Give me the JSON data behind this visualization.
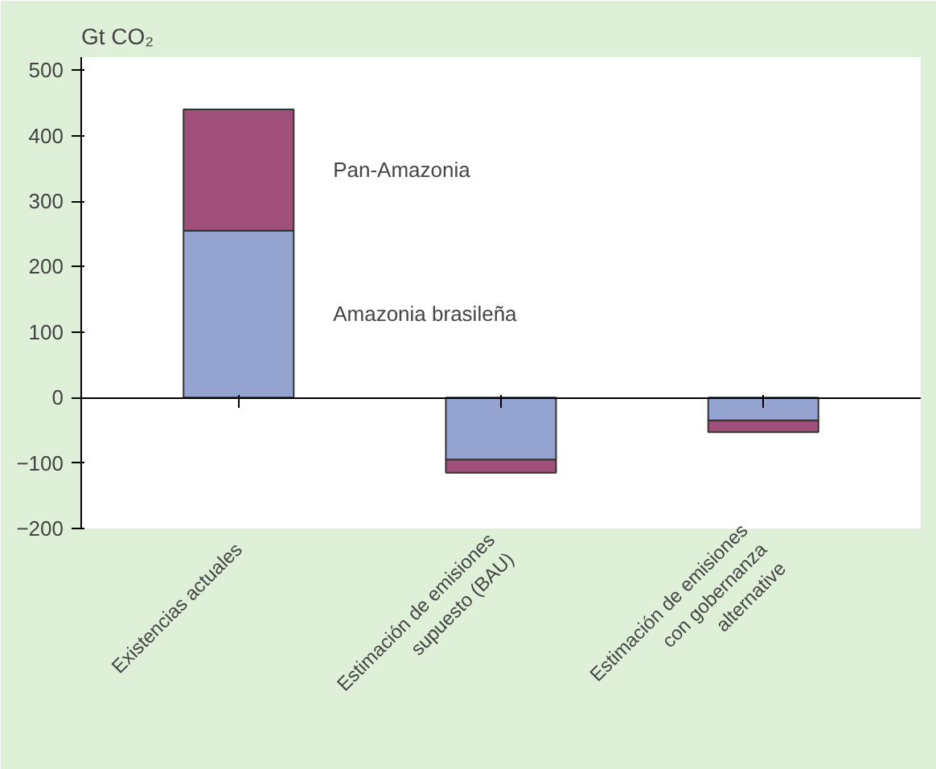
{
  "chart_data": {
    "type": "bar",
    "stacked": true,
    "ylabel": "Gt CO₂",
    "categories": [
      "Existencias actuales",
      "Estimación de emisiones supuesto (BAU)",
      "Estimación de emisiones con gobernanza alternative"
    ],
    "series": [
      {
        "name": "Amazonia brasileña",
        "color": "#95a3d0",
        "values": [
          255,
          -95,
          -35
        ]
      },
      {
        "name": "Pan-Amazonia",
        "color": "#a0507a",
        "values": [
          185,
          -20,
          -18
        ]
      }
    ],
    "ylim": [
      -200,
      520
    ],
    "yticks": [
      -200,
      -100,
      0,
      100,
      200,
      300,
      400,
      500
    ]
  }
}
